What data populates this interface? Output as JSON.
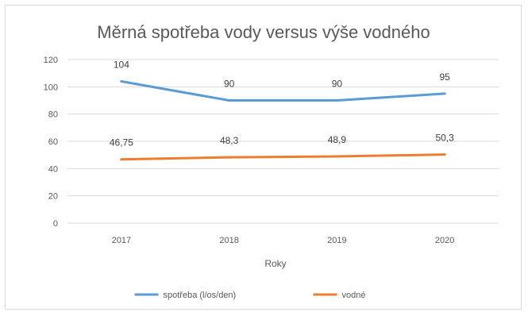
{
  "chart_data": {
    "type": "line",
    "title": "Měrná spotřeba vody versus výše vodného",
    "xlabel": "Roky",
    "ylabel": "",
    "categories": [
      "2017",
      "2018",
      "2019",
      "2020"
    ],
    "ylim": [
      0,
      120
    ],
    "yticks": [
      0,
      20,
      40,
      60,
      80,
      100,
      120
    ],
    "grid": true,
    "legend_position": "bottom",
    "series": [
      {
        "name": "spotřeba (l/os/den)",
        "values": [
          104,
          90,
          90,
          95
        ],
        "labels": [
          "104",
          "90",
          "90",
          "95"
        ],
        "color": "#5b9bd5"
      },
      {
        "name": "vodné",
        "values": [
          46.75,
          48.3,
          48.9,
          50.3
        ],
        "labels": [
          "46,75",
          "48,3",
          "48,9",
          "50,3"
        ],
        "color": "#ed7d31"
      }
    ]
  }
}
